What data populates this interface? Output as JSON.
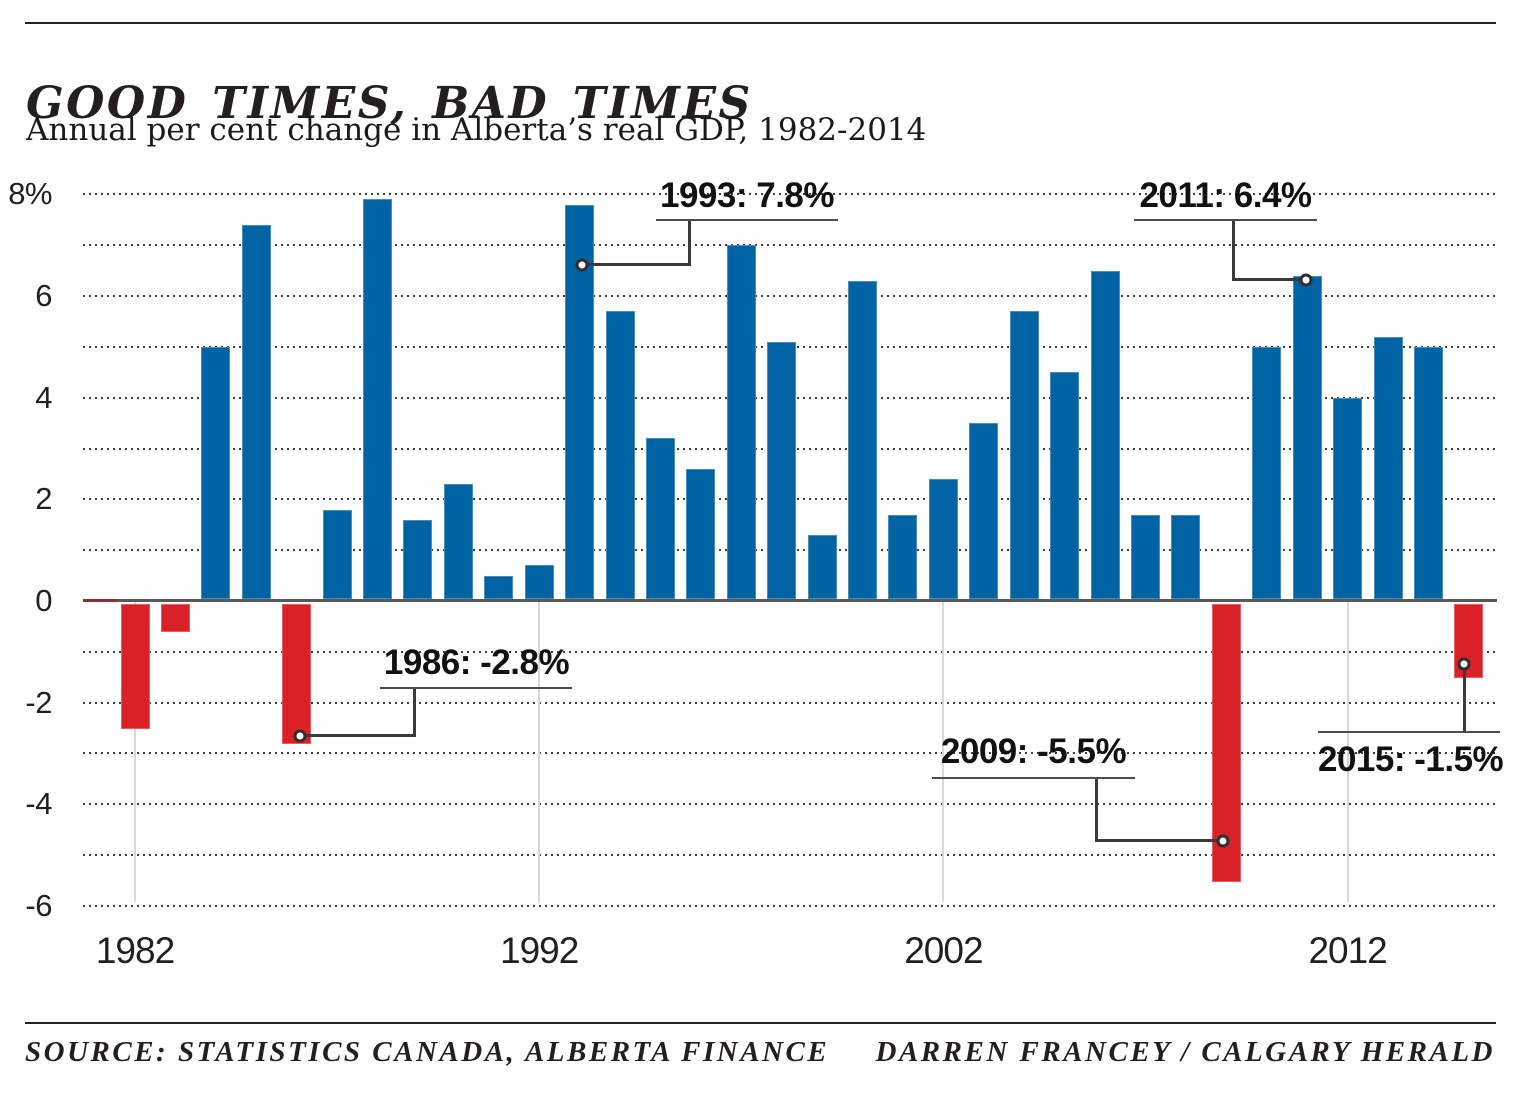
{
  "header": {
    "title": "GOOD TIMES, BAD TIMES",
    "subtitle": "Annual per cent change in Alberta’s real GDP, 1982-2014"
  },
  "chart_data": {
    "type": "bar",
    "title": "GOOD TIMES, BAD TIMES",
    "subtitle": "Annual per cent change in Alberta’s real GDP, 1982-2014",
    "unit": "%",
    "ylim": [
      -6,
      8
    ],
    "grid": "dotted horizontal line every 1 unit",
    "legend_position": "none",
    "categories": [
      1982,
      1983,
      1984,
      1985,
      1986,
      1987,
      1988,
      1989,
      1990,
      1991,
      1992,
      1993,
      1994,
      1995,
      1996,
      1997,
      1998,
      1999,
      2000,
      2001,
      2002,
      2003,
      2004,
      2005,
      2006,
      2007,
      2008,
      2009,
      2010,
      2011,
      2012,
      2013,
      2014,
      2015
    ],
    "values": [
      -2.5,
      -0.6,
      5.0,
      7.4,
      -2.8,
      1.8,
      7.9,
      1.6,
      2.3,
      0.5,
      0.7,
      7.8,
      5.7,
      3.2,
      2.6,
      7.0,
      5.1,
      1.3,
      6.3,
      1.7,
      2.4,
      3.5,
      5.7,
      4.5,
      6.5,
      1.7,
      1.7,
      -5.5,
      5.0,
      6.4,
      4.0,
      5.2,
      5.0,
      -1.5
    ],
    "yticks": [
      8,
      6,
      4,
      2,
      0,
      -2,
      -4,
      -6
    ],
    "ytick_labels": [
      "8%",
      "6",
      "4",
      "2",
      "0",
      "-2",
      "-4",
      "-6"
    ],
    "xticks": [
      1982,
      1992,
      2002,
      2012
    ],
    "xtick_labels": [
      "1982",
      "1992",
      "2002",
      "2012"
    ],
    "colors": {
      "positive_bar": "#0063a4",
      "negative_bar": "#da2128",
      "zero_axis": "#58595b",
      "decade_line": "#d8d8d8"
    },
    "annotations": [
      {
        "year": 1993,
        "value": 7.8,
        "label": "1993: 7.8%"
      },
      {
        "year": 2011,
        "value": 6.4,
        "label": "2011: 6.4%"
      },
      {
        "year": 1986,
        "value": -2.8,
        "label": "1986: -2.8%"
      },
      {
        "year": 2009,
        "value": -5.5,
        "label": "2009: -5.5%"
      },
      {
        "year": 2015,
        "value": -1.5,
        "label": "2015: -1.5%"
      }
    ]
  },
  "footer": {
    "source": "SOURCE: STATISTICS CANADA, ALBERTA FINANCE",
    "credit": "DARREN FRANCEY / CALGARY HERALD"
  }
}
